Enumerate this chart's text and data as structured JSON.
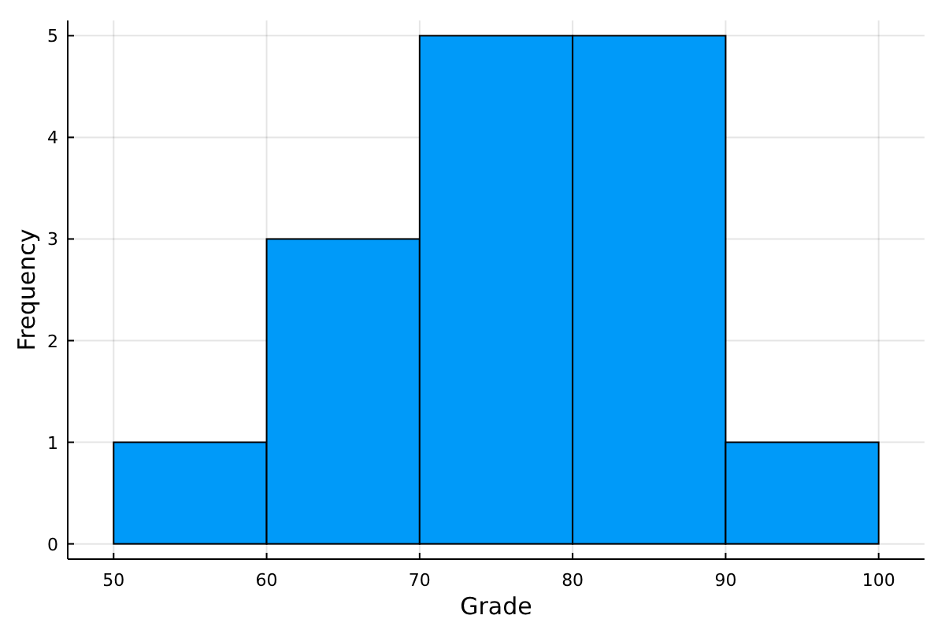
{
  "chart_data": {
    "type": "histogram",
    "xlabel": "Grade",
    "ylabel": "Frequency",
    "bins": [
      50,
      60,
      70,
      80,
      90,
      100
    ],
    "values": [
      1,
      3,
      5,
      5,
      1
    ],
    "color": "#009af9",
    "xlim": [
      47,
      103
    ],
    "xticks": [
      50,
      60,
      70,
      80,
      90,
      100
    ],
    "ylim": [
      -0.15,
      5.15
    ],
    "yticks": [
      0,
      1,
      2,
      3,
      4,
      5
    ],
    "grid": true
  }
}
